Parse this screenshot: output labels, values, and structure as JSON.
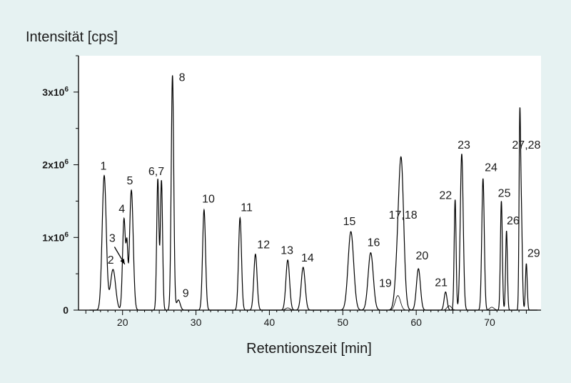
{
  "chart_data": {
    "type": "line",
    "xlabel": "Retentionszeit [min]",
    "ylabel": "Intensität [cps]",
    "xlim": [
      14,
      77
    ],
    "ylim": [
      0,
      3500000
    ],
    "x_ticks": [
      {
        "value": 20,
        "label": "20"
      },
      {
        "value": 30,
        "label": "30"
      },
      {
        "value": 40,
        "label": "40"
      },
      {
        "value": 50,
        "label": "50"
      },
      {
        "value": 60,
        "label": "60"
      },
      {
        "value": 70,
        "label": "70"
      }
    ],
    "y_ticks": [
      {
        "value": 0,
        "base": "0",
        "exp": ""
      },
      {
        "value": 1000000,
        "base": "1x10",
        "exp": "6"
      },
      {
        "value": 2000000,
        "base": "2x10",
        "exp": "6"
      },
      {
        "value": 3000000,
        "base": "3x10",
        "exp": "6"
      }
    ],
    "grid": false,
    "line_color": "#000000",
    "series": [
      {
        "peaks": [
          {
            "label": "1",
            "rt": 17.5,
            "height": 1850000,
            "width": 0.28
          },
          {
            "label": "2",
            "rt": 18.7,
            "height": 560000,
            "width": 0.35
          },
          {
            "label": "3",
            "rt": 20.6,
            "height": 720000,
            "width": 0.12
          },
          {
            "label": "4",
            "rt": 20.2,
            "height": 1260000,
            "width": 0.2
          },
          {
            "label": "5",
            "rt": 21.2,
            "height": 1650000,
            "width": 0.25
          },
          {
            "label": "6",
            "rt": 24.8,
            "height": 1800000,
            "width": 0.15
          },
          {
            "label": "7",
            "rt": 25.3,
            "height": 1780000,
            "width": 0.15
          },
          {
            "label": "8",
            "rt": 26.8,
            "height": 3230000,
            "width": 0.17
          },
          {
            "label": "9",
            "rt": 27.6,
            "height": 140000,
            "width": 0.25
          },
          {
            "label": "10",
            "rt": 31.1,
            "height": 1380000,
            "width": 0.2
          },
          {
            "label": "11",
            "rt": 36.0,
            "height": 1270000,
            "width": 0.2
          },
          {
            "label": "12",
            "rt": 38.1,
            "height": 770000,
            "width": 0.22
          },
          {
            "label": "13",
            "rt": 42.5,
            "height": 690000,
            "width": 0.25
          },
          {
            "label": "14",
            "rt": 44.6,
            "height": 590000,
            "width": 0.27
          },
          {
            "label": "15",
            "rt": 51.1,
            "height": 1080000,
            "width": 0.38
          },
          {
            "label": "16",
            "rt": 53.8,
            "height": 790000,
            "width": 0.35
          },
          {
            "label": "17",
            "rt": 58.0,
            "height": 1180000,
            "width": 0.32
          },
          {
            "label": "18",
            "rt": 57.8,
            "height": 950000,
            "width": 0.42
          },
          {
            "label": "19",
            "rt": 57.4,
            "height": 200000,
            "width": 0.32
          },
          {
            "label": "20",
            "rt": 60.3,
            "height": 570000,
            "width": 0.27
          },
          {
            "label": "21",
            "rt": 64.0,
            "height": 250000,
            "width": 0.2
          },
          {
            "label": "22",
            "rt": 65.3,
            "height": 1520000,
            "width": 0.13
          },
          {
            "label": "23",
            "rt": 66.2,
            "height": 2150000,
            "width": 0.2
          },
          {
            "label": "24",
            "rt": 69.1,
            "height": 1810000,
            "width": 0.17
          },
          {
            "label": "25",
            "rt": 71.6,
            "height": 1500000,
            "width": 0.13
          },
          {
            "label": "26",
            "rt": 72.3,
            "height": 1090000,
            "width": 0.12
          },
          {
            "label": "27",
            "rt": 74.1,
            "height": 2220000,
            "width": 0.1
          },
          {
            "label": "28",
            "rt": 74.3,
            "height": 1400000,
            "width": 0.14
          },
          {
            "label": "29",
            "rt": 75.0,
            "height": 640000,
            "width": 0.12
          }
        ]
      },
      {
        "peaks": [
          {
            "label": "",
            "rt": 42.5,
            "height": 30000,
            "width": 0.3
          },
          {
            "label": "",
            "rt": 57.5,
            "height": 200000,
            "width": 0.35
          },
          {
            "label": "",
            "rt": 64.5,
            "height": 60000,
            "width": 0.3
          },
          {
            "label": "",
            "rt": 70.3,
            "height": 40000,
            "width": 0.3
          }
        ]
      }
    ],
    "annotations": [
      {
        "text": "1",
        "x": 17.4,
        "y": 1930000
      },
      {
        "text": "2",
        "x": 18.4,
        "y": 640000
      },
      {
        "text": "3",
        "x": 18.6,
        "y": 940000
      },
      {
        "text": "4",
        "x": 19.9,
        "y": 1340000
      },
      {
        "text": "5",
        "x": 21.0,
        "y": 1730000
      },
      {
        "text": "6,7",
        "x": 24.6,
        "y": 1860000
      },
      {
        "text": "8",
        "x": 28.1,
        "y": 3150000
      },
      {
        "text": "9",
        "x": 28.6,
        "y": 180000
      },
      {
        "text": "10",
        "x": 31.7,
        "y": 1480000
      },
      {
        "text": "11",
        "x": 36.9,
        "y": 1360000
      },
      {
        "text": "12",
        "x": 39.2,
        "y": 850000
      },
      {
        "text": "13",
        "x": 42.4,
        "y": 770000
      },
      {
        "text": "14",
        "x": 45.2,
        "y": 670000
      },
      {
        "text": "15",
        "x": 50.9,
        "y": 1170000
      },
      {
        "text": "16",
        "x": 54.2,
        "y": 880000
      },
      {
        "text": "17,18",
        "x": 58.2,
        "y": 1260000
      },
      {
        "text": "19",
        "x": 55.8,
        "y": 320000
      },
      {
        "text": "20",
        "x": 60.8,
        "y": 700000
      },
      {
        "text": "21",
        "x": 63.4,
        "y": 330000
      },
      {
        "text": "22",
        "x": 64.0,
        "y": 1530000
      },
      {
        "text": "23",
        "x": 66.5,
        "y": 2220000
      },
      {
        "text": "24",
        "x": 70.2,
        "y": 1910000
      },
      {
        "text": "25",
        "x": 72.0,
        "y": 1560000
      },
      {
        "text": "26",
        "x": 73.2,
        "y": 1180000
      },
      {
        "text": "27,28",
        "x": 75.0,
        "y": 2220000
      },
      {
        "text": "29",
        "x": 76.0,
        "y": 730000
      }
    ],
    "arrow": {
      "from": [
        18.9,
        870000
      ],
      "to": [
        20.3,
        630000
      ]
    }
  }
}
